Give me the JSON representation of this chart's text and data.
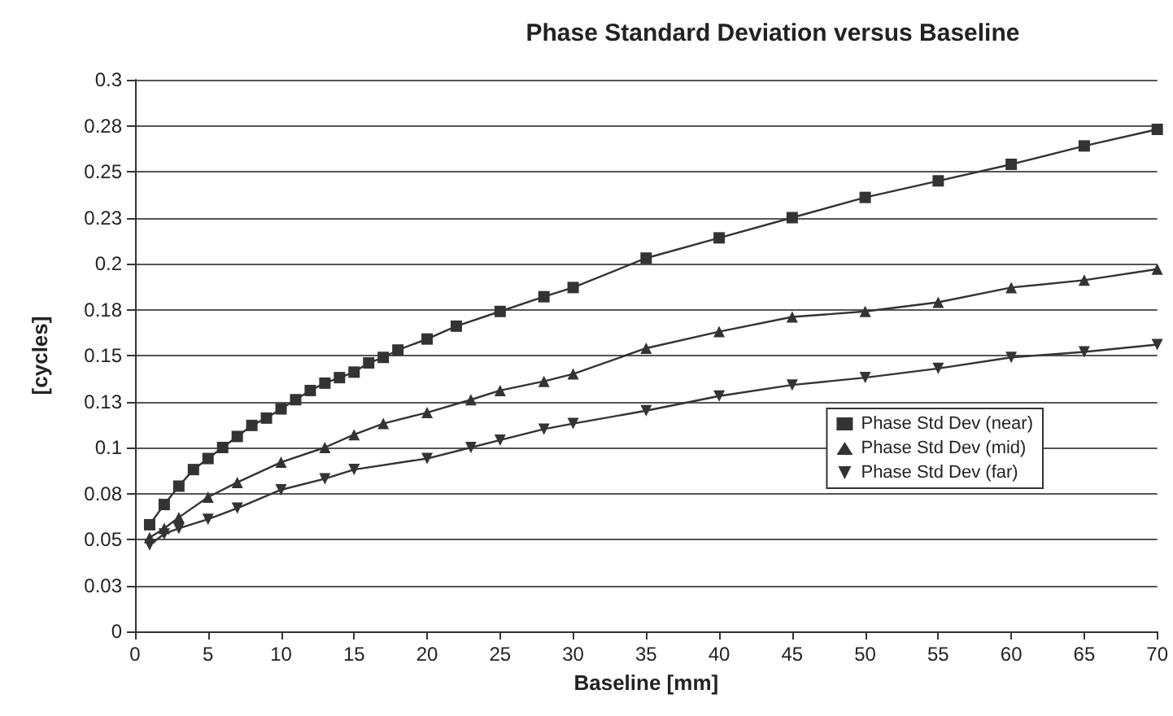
{
  "chart_data": {
    "type": "line",
    "title": "Phase Standard Deviation versus Baseline",
    "xlabel": "Baseline [mm]",
    "ylabel": "[cycles]",
    "xlim": [
      0,
      70
    ],
    "xticks": [
      0,
      5,
      10,
      15,
      20,
      25,
      30,
      35,
      40,
      45,
      50,
      55,
      60,
      65,
      70
    ],
    "ylim": [
      0,
      0.3
    ],
    "yticks": [
      0,
      {
        "value": 0.025,
        "label": "0.03"
      },
      0.05,
      {
        "value": 0.075,
        "label": "0.08"
      },
      0.1,
      {
        "value": 0.125,
        "label": "0.13"
      },
      0.15,
      {
        "value": 0.175,
        "label": "0.18"
      },
      0.2,
      {
        "value": 0.225,
        "label": "0.23"
      },
      0.25,
      {
        "value": 0.275,
        "label": "0.28"
      },
      0.3
    ],
    "grid": "y",
    "legend": "bottom right",
    "line_style": "solid",
    "series": [
      {
        "name": "Phase Std Dev (near)",
        "color": "#333333",
        "marker": "square",
        "x": [
          1,
          2,
          3,
          4,
          5,
          6,
          7,
          8,
          9,
          10,
          11,
          12,
          13,
          14,
          15,
          16,
          17,
          18,
          20,
          22,
          25,
          28,
          30,
          35,
          40,
          45,
          50,
          55,
          60,
          65,
          70
        ],
        "values": [
          0.058,
          0.069,
          0.079,
          0.088,
          0.094,
          0.1,
          0.106,
          0.112,
          0.116,
          0.121,
          0.126,
          0.131,
          0.135,
          0.138,
          0.141,
          0.146,
          0.149,
          0.153,
          0.159,
          0.166,
          0.174,
          0.182,
          0.187,
          0.203,
          0.214,
          0.225,
          0.236,
          0.245,
          0.254,
          0.264,
          0.273
        ]
      },
      {
        "name": "Phase Std Dev (mid)",
        "color": "#333333",
        "marker": "triangle",
        "x": [
          1,
          2,
          3,
          5,
          7,
          10,
          13,
          15,
          17,
          20,
          23,
          25,
          28,
          30,
          35,
          40,
          45,
          50,
          55,
          60,
          65,
          70
        ],
        "values": [
          0.051,
          0.056,
          0.062,
          0.073,
          0.081,
          0.092,
          0.1,
          0.107,
          0.113,
          0.119,
          0.126,
          0.131,
          0.136,
          0.14,
          0.154,
          0.163,
          0.171,
          0.174,
          0.179,
          0.187,
          0.191,
          0.197
        ]
      },
      {
        "name": "Phase Std Dev (far)",
        "color": "#333333",
        "marker": "triangle-down",
        "x": [
          1,
          2,
          3,
          5,
          7,
          10,
          13,
          15,
          20,
          23,
          25,
          28,
          30,
          35,
          40,
          45,
          50,
          55,
          60,
          65,
          70
        ],
        "values": [
          0.047,
          0.053,
          0.056,
          0.061,
          0.067,
          0.077,
          0.083,
          0.088,
          0.094,
          0.1,
          0.104,
          0.11,
          0.113,
          0.12,
          0.128,
          0.134,
          0.138,
          0.143,
          0.149,
          0.152,
          0.156
        ]
      }
    ]
  }
}
